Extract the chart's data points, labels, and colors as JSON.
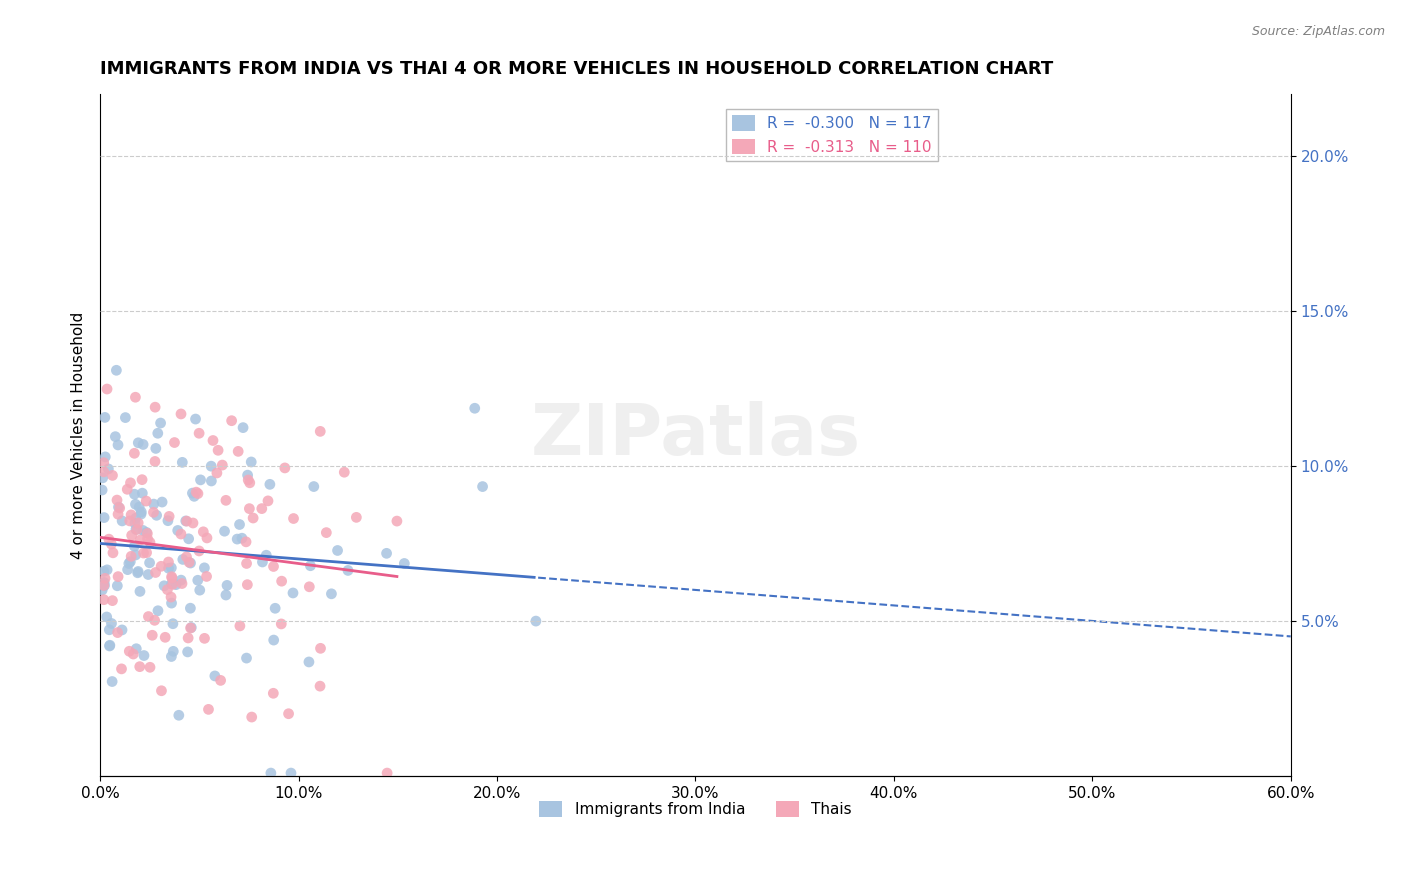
{
  "title": "IMMIGRANTS FROM INDIA VS THAI 4 OR MORE VEHICLES IN HOUSEHOLD CORRELATION CHART",
  "source": "Source: ZipAtlas.com",
  "ylabel": "4 or more Vehicles in Household",
  "xlim": [
    0.0,
    0.6
  ],
  "ylim": [
    0.0,
    0.22
  ],
  "india_color": "#A8C4E0",
  "thai_color": "#F4A8B8",
  "india_line_color": "#4472C4",
  "thai_line_color": "#E85D8A",
  "india_R": -0.3,
  "india_N": 117,
  "thai_R": -0.313,
  "thai_N": 110,
  "watermark": "ZIPatlas",
  "legend_india": "Immigrants from India",
  "legend_thai": "Thais"
}
